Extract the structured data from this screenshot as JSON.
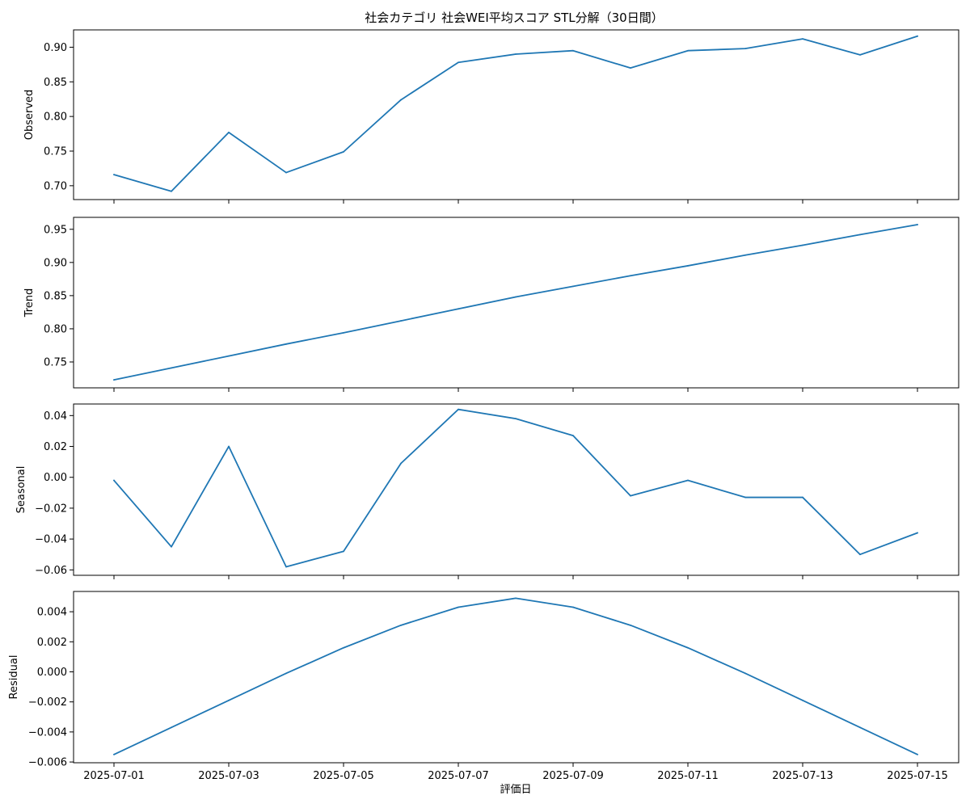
{
  "chart_data": {
    "type": "line",
    "title": "社会カテゴリ 社会WEI平均スコア STL分解（30日間）",
    "xlabel": "評価日",
    "line_color": "#1f77b4",
    "x": [
      "2025-07-01",
      "2025-07-02",
      "2025-07-03",
      "2025-07-04",
      "2025-07-05",
      "2025-07-06",
      "2025-07-07",
      "2025-07-08",
      "2025-07-09",
      "2025-07-10",
      "2025-07-11",
      "2025-07-12",
      "2025-07-13",
      "2025-07-14",
      "2025-07-15"
    ],
    "x_tick_labels": [
      "2025-07-01",
      "2025-07-03",
      "2025-07-05",
      "2025-07-07",
      "2025-07-09",
      "2025-07-11",
      "2025-07-13",
      "2025-07-15"
    ],
    "panels": [
      {
        "ylabel": "Observed",
        "ylim": [
          0.68,
          0.925
        ],
        "y_ticks": [
          "0.70",
          "0.75",
          "0.80",
          "0.85",
          "0.90"
        ],
        "values": [
          0.716,
          0.692,
          0.777,
          0.719,
          0.749,
          0.824,
          0.878,
          0.89,
          0.895,
          0.87,
          0.895,
          0.898,
          0.912,
          0.889,
          0.916
        ]
      },
      {
        "ylabel": "Trend",
        "ylim": [
          0.711,
          0.968
        ],
        "y_ticks": [
          "0.75",
          "0.80",
          "0.85",
          "0.90",
          "0.95"
        ],
        "values": [
          0.723,
          0.741,
          0.759,
          0.777,
          0.794,
          0.812,
          0.83,
          0.848,
          0.864,
          0.88,
          0.895,
          0.911,
          0.926,
          0.942,
          0.957
        ]
      },
      {
        "ylabel": "Seasonal",
        "ylim": [
          -0.0635,
          0.0475
        ],
        "y_ticks": [
          "−0.06",
          "−0.04",
          "−0.02",
          "0.00",
          "0.02",
          "0.04"
        ],
        "values": [
          -0.002,
          -0.045,
          0.02,
          -0.058,
          -0.048,
          0.009,
          0.044,
          0.038,
          0.027,
          -0.012,
          -0.002,
          -0.013,
          -0.013,
          -0.05,
          -0.036
        ]
      },
      {
        "ylabel": "Residual",
        "ylim": [
          -0.00605,
          0.00535
        ],
        "y_ticks": [
          "−0.006",
          "−0.004",
          "−0.002",
          "0.000",
          "0.002",
          "0.004"
        ],
        "values": [
          -0.0055,
          -0.0037,
          -0.0019,
          -0.0001,
          0.0016,
          0.0031,
          0.0043,
          0.0049,
          0.0043,
          0.0031,
          0.0016,
          -0.0001,
          -0.0019,
          -0.0037,
          -0.0055
        ]
      }
    ]
  }
}
